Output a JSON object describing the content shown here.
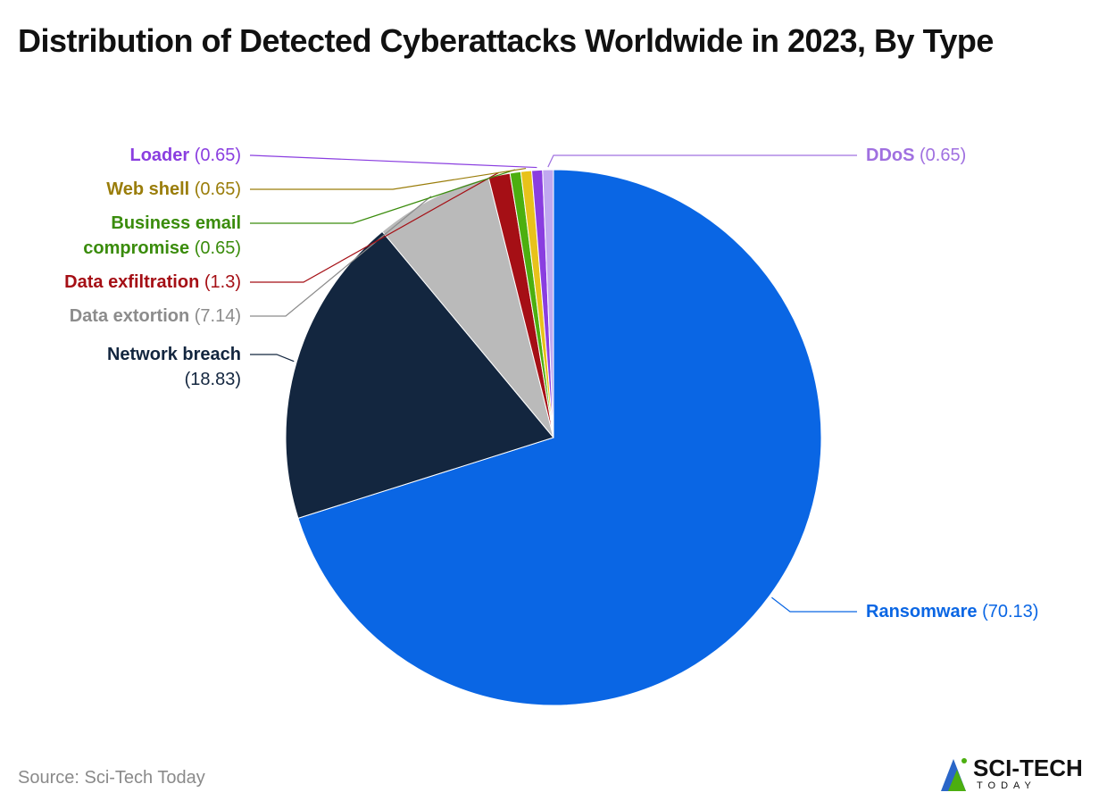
{
  "chart_data": {
    "type": "pie",
    "title": "Distribution of Detected Cyberattacks Worldwide in 2023, By Type",
    "categories": [
      "Ransomware",
      "Network breach",
      "Data extortion",
      "Data exfiltration",
      "Business email compromise",
      "Web shell",
      "Loader",
      "DDoS"
    ],
    "values": [
      70.13,
      18.83,
      7.14,
      1.3,
      0.65,
      0.65,
      0.65,
      0.65
    ],
    "value_labels": [
      "(70.13)",
      "(18.83)",
      "(7.14)",
      "(1.3)",
      "(0.65)",
      "(0.65)",
      "(0.65)",
      "(0.65)"
    ],
    "colors": [
      "#0a66e4",
      "#13263f",
      "#bababa",
      "#a50f15",
      "#4caf10",
      "#e8c21a",
      "#8a3ee0",
      "#c0a8f0"
    ],
    "label_colors": [
      "#0a66e4",
      "#13263f",
      "#8c8c8c",
      "#a50f15",
      "#3a8c0c",
      "#9a7d0a",
      "#8a3ee0",
      "#a070e0"
    ],
    "source": "Source: Sci-Tech Today",
    "logo_text": "SCI-TECH",
    "logo_subtext": "TODAY"
  }
}
